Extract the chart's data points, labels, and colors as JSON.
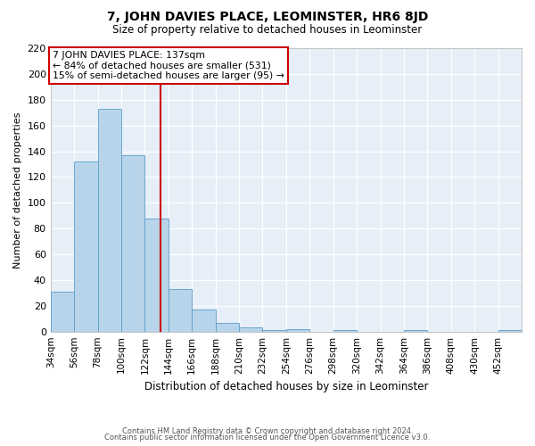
{
  "title": "7, JOHN DAVIES PLACE, LEOMINSTER, HR6 8JD",
  "subtitle": "Size of property relative to detached houses in Leominster",
  "xlabel": "Distribution of detached houses by size in Leominster",
  "ylabel": "Number of detached properties",
  "bar_color": "#b8d4ea",
  "bar_edge_color": "#5b9ec9",
  "bg_color": "#e6eef8",
  "grid_color": "#ffffff",
  "vline_x": 137,
  "vline_color": "#cc0000",
  "annotation_title": "7 JOHN DAVIES PLACE: 137sqm",
  "annotation_line1": "← 84% of detached houses are smaller (531)",
  "annotation_line2": "15% of semi-detached houses are larger (95) →",
  "annotation_box_edge": "#cc0000",
  "bin_edges": [
    34,
    56,
    78,
    100,
    122,
    144,
    166,
    188,
    210,
    232,
    254,
    276,
    298,
    320,
    342,
    364,
    386,
    408,
    430,
    452,
    474
  ],
  "bin_counts": [
    31,
    132,
    173,
    137,
    88,
    33,
    17,
    7,
    3,
    1,
    2,
    0,
    1,
    0,
    0,
    1,
    0,
    0,
    0,
    1
  ],
  "ylim": [
    0,
    220
  ],
  "yticks": [
    0,
    20,
    40,
    60,
    80,
    100,
    120,
    140,
    160,
    180,
    200,
    220
  ],
  "footnote1": "Contains HM Land Registry data © Crown copyright and database right 2024.",
  "footnote2": "Contains public sector information licensed under the Open Government Licence v3.0."
}
